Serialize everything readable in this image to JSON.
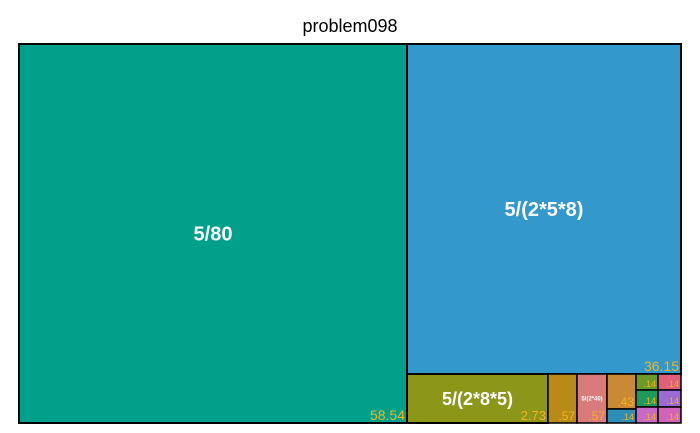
{
  "chart_data": {
    "type": "treemap",
    "title": "problem098",
    "value_color": "#f2b31c",
    "border_color": "#000000",
    "tiles": [
      {
        "label": "5/80",
        "value": "58.54",
        "color": "#00a08a"
      },
      {
        "label": "5/(2*5*8)",
        "value": "36.15",
        "color": "#3399cc"
      },
      {
        "label": "5/(2*8*5)",
        "value": "2.73",
        "color": "#8c9719"
      },
      {
        "label": "",
        "value": ".57",
        "color": "#b88a17"
      },
      {
        "label": "5/(2*40)",
        "value": ".57",
        "color": "#d97b7b"
      },
      {
        "label": "",
        "value": ".43",
        "color": "#c98a33"
      },
      {
        "label": "",
        "value": ".14",
        "color": "#6a9a2a"
      },
      {
        "label": "",
        "value": ".14",
        "color": "#e0607a"
      },
      {
        "label": "",
        "value": ".14",
        "color": "#2d8fb8"
      },
      {
        "label": "",
        "value": ".14",
        "color": "#1f9a5a"
      },
      {
        "label": "",
        "value": ".14",
        "color": "#9d6ad4"
      },
      {
        "label": "",
        "value": ".14",
        "color": "#c869c6"
      },
      {
        "label": "",
        "value": ".14",
        "color": "#d264b8"
      }
    ]
  }
}
